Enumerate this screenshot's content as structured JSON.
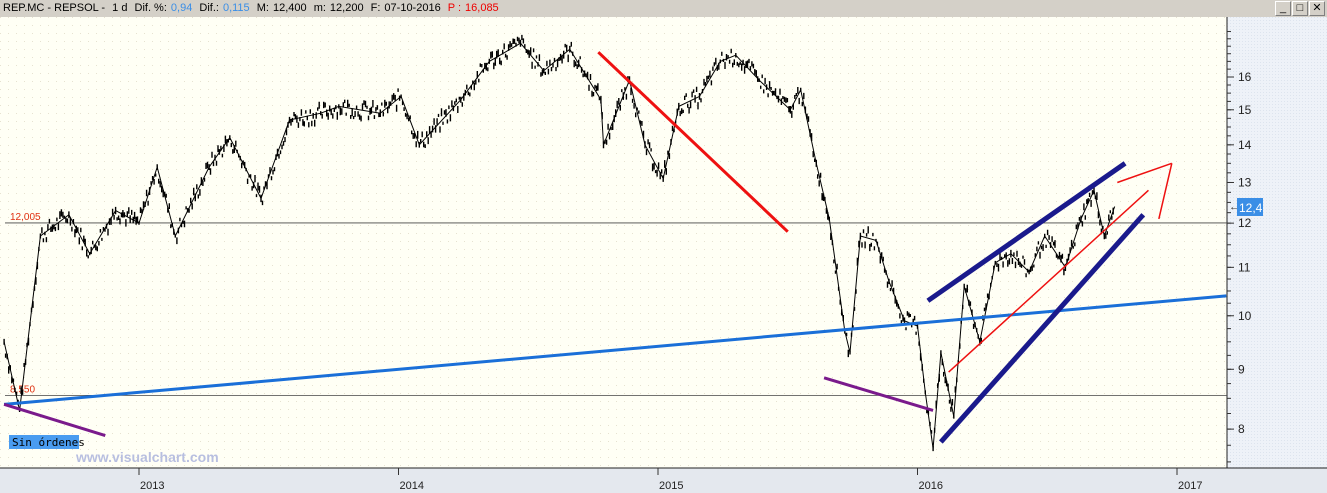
{
  "header": {
    "symbol": "REP.MC - REPSOL -",
    "period": "1 d",
    "dif_pct_label": "Dif. %:",
    "dif_pct": "0,94",
    "dif_label": "Dif.:",
    "dif": "0,115",
    "max_label": "M:",
    "max": "12,400",
    "min_label": "m:",
    "min": "12,200",
    "date_label": "F:",
    "date": "07-10-2016",
    "p_label": "P :",
    "p": "16,085"
  },
  "window_controls": {
    "minimize": "_",
    "maximize": "□",
    "close": "✕"
  },
  "badge": "Sin órdenes",
  "watermark": "www.visualchart.com",
  "last_price_tag": "12,4",
  "colors": {
    "price": "#000000",
    "accent": "#3a8ee6",
    "level": "#e03010",
    "blue_trend": "#1a6fd8",
    "navy": "#1a1a8c",
    "purple": "#7a1a8c",
    "red": "#ee1111"
  },
  "chart_data": {
    "type": "line",
    "y_scale": "log",
    "ylim": [
      7.4,
      17.6
    ],
    "xlim": [
      2012.46,
      2017.19
    ],
    "y_ticks": [
      "8",
      "9",
      "10",
      "11",
      "12",
      "13",
      "14",
      "15",
      "16"
    ],
    "x_ticks": [
      "2013",
      "2014",
      "2015",
      "2016",
      "2017"
    ],
    "grid": false,
    "price_series": [
      [
        2012.48,
        9.5
      ],
      [
        2012.54,
        8.3
      ],
      [
        2012.62,
        11.7
      ],
      [
        2012.73,
        12.2
      ],
      [
        2012.81,
        11.3
      ],
      [
        2012.91,
        12.3
      ],
      [
        2013.0,
        12.0
      ],
      [
        2013.07,
        13.4
      ],
      [
        2013.14,
        11.7
      ],
      [
        2013.27,
        13.4
      ],
      [
        2013.35,
        14.2
      ],
      [
        2013.47,
        12.6
      ],
      [
        2013.58,
        14.7
      ],
      [
        2013.7,
        14.9
      ],
      [
        2013.77,
        15.1
      ],
      [
        2013.93,
        14.9
      ],
      [
        2014.01,
        15.4
      ],
      [
        2014.08,
        14.0
      ],
      [
        2014.24,
        15.3
      ],
      [
        2014.35,
        16.5
      ],
      [
        2014.47,
        17.1
      ],
      [
        2014.56,
        16.2
      ],
      [
        2014.66,
        16.9
      ],
      [
        2014.78,
        15.3
      ],
      [
        2014.79,
        14.0
      ],
      [
        2014.89,
        15.9
      ],
      [
        2014.95,
        14.0
      ],
      [
        2015.02,
        13.1
      ],
      [
        2015.08,
        15.1
      ],
      [
        2015.16,
        15.4
      ],
      [
        2015.24,
        16.5
      ],
      [
        2015.3,
        16.7
      ],
      [
        2015.39,
        15.9
      ],
      [
        2015.51,
        15.0
      ],
      [
        2015.55,
        15.6
      ],
      [
        2015.61,
        13.5
      ],
      [
        2015.66,
        12.1
      ],
      [
        2015.72,
        9.7
      ],
      [
        2015.74,
        9.3
      ],
      [
        2015.78,
        11.7
      ],
      [
        2015.84,
        11.6
      ],
      [
        2015.89,
        10.7
      ],
      [
        2015.95,
        9.9
      ],
      [
        2016.0,
        9.8
      ],
      [
        2016.03,
        8.6
      ],
      [
        2016.06,
        7.7
      ],
      [
        2016.09,
        9.3
      ],
      [
        2016.14,
        8.2
      ],
      [
        2016.18,
        10.6
      ],
      [
        2016.24,
        9.5
      ],
      [
        2016.3,
        11.1
      ],
      [
        2016.36,
        11.3
      ],
      [
        2016.43,
        10.9
      ],
      [
        2016.49,
        11.7
      ],
      [
        2016.57,
        11.0
      ],
      [
        2016.63,
        12.1
      ],
      [
        2016.68,
        12.8
      ],
      [
        2016.72,
        11.7
      ],
      [
        2016.76,
        12.4
      ]
    ],
    "levels": [
      {
        "value": 12.005,
        "label": "12,005"
      },
      {
        "value": 8.55,
        "label": "8,550"
      }
    ],
    "trendlines": [
      {
        "color": "red",
        "width": 3,
        "points": [
          [
            2014.77,
            16.8
          ],
          [
            2015.5,
            11.8
          ]
        ]
      },
      {
        "color": "blue_trend",
        "width": 3,
        "points": [
          [
            2012.48,
            8.4
          ],
          [
            2017.19,
            10.4
          ]
        ]
      },
      {
        "color": "purple",
        "width": 3,
        "points": [
          [
            2012.48,
            8.4
          ],
          [
            2012.87,
            7.9
          ]
        ]
      },
      {
        "color": "purple",
        "width": 3,
        "points": [
          [
            2015.64,
            8.85
          ],
          [
            2016.06,
            8.3
          ]
        ]
      },
      {
        "color": "navy",
        "width": 5,
        "points": [
          [
            2016.04,
            10.3
          ],
          [
            2016.8,
            13.5
          ]
        ]
      },
      {
        "color": "navy",
        "width": 5,
        "points": [
          [
            2016.09,
            7.8
          ],
          [
            2016.87,
            12.2
          ]
        ]
      },
      {
        "color": "red",
        "width": 1.5,
        "points": [
          [
            2016.12,
            8.95
          ],
          [
            2016.89,
            12.8
          ]
        ]
      },
      {
        "color": "red",
        "width": 1.5,
        "points": [
          [
            2016.77,
            13.0
          ],
          [
            2016.98,
            13.5
          ]
        ]
      },
      {
        "color": "red",
        "width": 1.5,
        "points": [
          [
            2016.93,
            12.1
          ],
          [
            2016.98,
            13.5
          ]
        ]
      }
    ]
  }
}
